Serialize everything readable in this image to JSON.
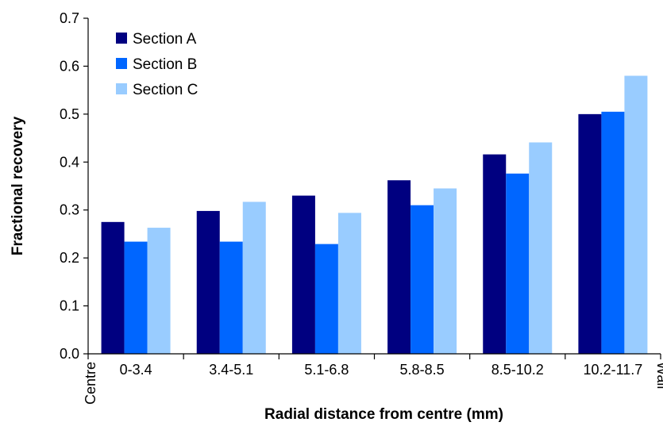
{
  "chart_data": {
    "type": "bar",
    "title": "",
    "xlabel": "Radial distance from centre (mm)",
    "ylabel": "Fractional recovery",
    "categories": [
      "0-3.4",
      "3.4-5.1",
      "5.1-6.8",
      "5.8-8.5",
      "8.5-10.2",
      "10.2-11.7"
    ],
    "axis_end_labels": {
      "left": "Centre",
      "right": "Wall"
    },
    "ylim": [
      0,
      0.7
    ],
    "yticks": [
      "0.0",
      "0.1",
      "0.2",
      "0.3",
      "0.4",
      "0.5",
      "0.6",
      "0.7"
    ],
    "grid": false,
    "legend_position": "top-left",
    "series": [
      {
        "name": "Section A",
        "color": "#000080",
        "values": [
          0.275,
          0.298,
          0.33,
          0.362,
          0.416,
          0.5
        ]
      },
      {
        "name": "Section B",
        "color": "#0066ff",
        "values": [
          0.234,
          0.234,
          0.229,
          0.31,
          0.376,
          0.505
        ]
      },
      {
        "name": "Section C",
        "color": "#99ccff",
        "values": [
          0.263,
          0.317,
          0.294,
          0.345,
          0.441,
          0.58
        ]
      }
    ]
  }
}
